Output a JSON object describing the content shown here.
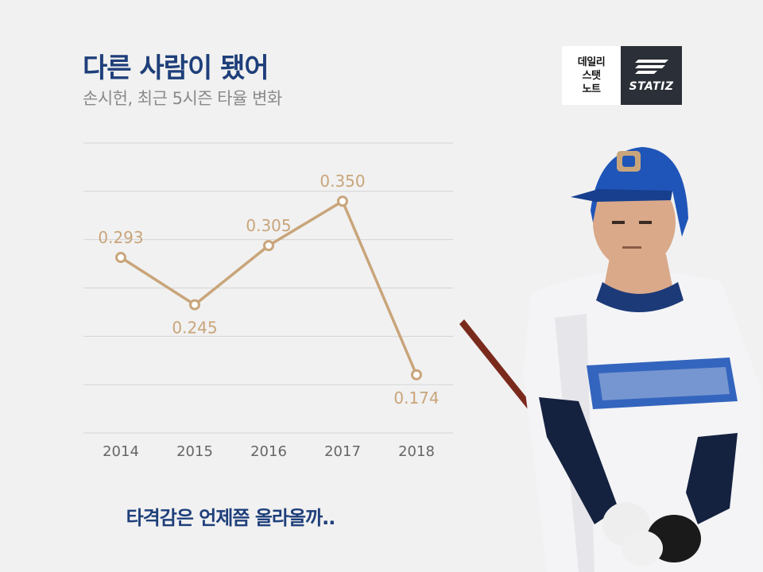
{
  "header": {
    "title": "다른 사람이 됐어",
    "subtitle": "손시헌, 최근 5시즌 타율 변화"
  },
  "brand": {
    "note_lines": [
      "데일리",
      "스탯",
      "노트"
    ],
    "logo_text": "STATIZ"
  },
  "footer": {
    "caption": "타격감은 언제쯤 올라올까.."
  },
  "colors": {
    "title": "#1e3f7a",
    "line": "#c9a57b",
    "label": "#c9a57b",
    "axis_text": "#666666",
    "grid": "#d4d4d4"
  },
  "chart_data": {
    "type": "line",
    "categories": [
      "2014",
      "2015",
      "2016",
      "2017",
      "2018"
    ],
    "series": [
      {
        "values": [
          0.293,
          0.245,
          0.305,
          0.35,
          0.174
        ],
        "labels": [
          "0.293",
          "0.245",
          "0.305",
          "0.350",
          "0.174"
        ]
      }
    ],
    "title": "다른 사람이 됐어",
    "subtitle": "손시헌, 최근 5시즌 타율 변화",
    "xlabel": "",
    "ylabel": "",
    "ylim": [
      0.115,
      0.409
    ],
    "grid": true,
    "legend": "none"
  }
}
